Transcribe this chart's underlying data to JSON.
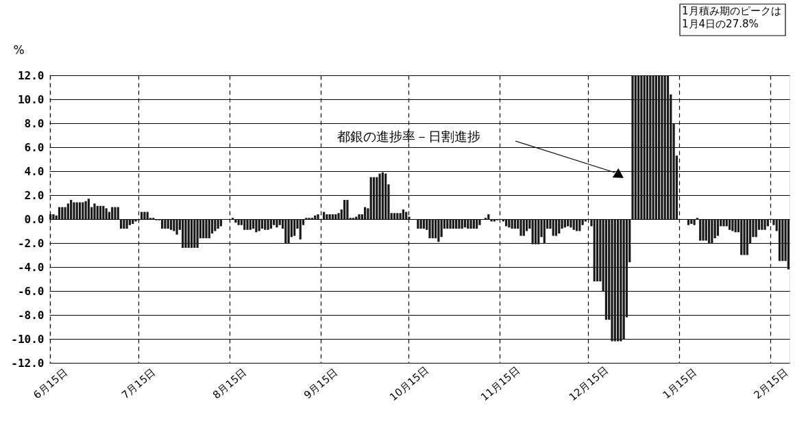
{
  "chart_data": {
    "type": "bar",
    "ylabel": "%",
    "categories": [
      "6月15日",
      null,
      null,
      null,
      null,
      null,
      null,
      null,
      null,
      null,
      null,
      null,
      null,
      null,
      null,
      null,
      null,
      null,
      null,
      null,
      null,
      null,
      null,
      null,
      null,
      null,
      null,
      null,
      null,
      null,
      "7月15日",
      null,
      null,
      null,
      null,
      null,
      null,
      null,
      null,
      null,
      null,
      null,
      null,
      null,
      null,
      null,
      null,
      null,
      null,
      null,
      null,
      null,
      null,
      null,
      null,
      null,
      null,
      null,
      null,
      null,
      null,
      "8月15日",
      null,
      null,
      null,
      null,
      null,
      null,
      null,
      null,
      null,
      null,
      null,
      null,
      null,
      null,
      null,
      null,
      null,
      null,
      null,
      null,
      null,
      null,
      null,
      null,
      null,
      null,
      null,
      null,
      null,
      null,
      "9月15日",
      null,
      null,
      null,
      null,
      null,
      null,
      null,
      null,
      null,
      null,
      null,
      null,
      null,
      null,
      null,
      null,
      null,
      null,
      null,
      null,
      null,
      null,
      null,
      null,
      null,
      null,
      null,
      null,
      null,
      "10月15日",
      null,
      null,
      null,
      null,
      null,
      null,
      null,
      null,
      null,
      null,
      null,
      null,
      null,
      null,
      null,
      null,
      null,
      null,
      null,
      null,
      null,
      null,
      null,
      null,
      null,
      null,
      null,
      null,
      null,
      null,
      "11月15日",
      null,
      null,
      null,
      null,
      null,
      null,
      null,
      null,
      null,
      null,
      null,
      null,
      null,
      null,
      null,
      null,
      null,
      null,
      null,
      null,
      null,
      null,
      null,
      null,
      null,
      null,
      null,
      null,
      null,
      "12月15日",
      null,
      null,
      null,
      null,
      null,
      null,
      null,
      null,
      null,
      null,
      null,
      null,
      null,
      null,
      null,
      null,
      null,
      null,
      null,
      null,
      null,
      null,
      null,
      null,
      null,
      null,
      null,
      null,
      null,
      null,
      "1月15日",
      null,
      null,
      null,
      null,
      null,
      null,
      null,
      null,
      null,
      null,
      null,
      null,
      null,
      null,
      null,
      null,
      null,
      null,
      null,
      null,
      null,
      null,
      null,
      null,
      null,
      null,
      null,
      null,
      null,
      null,
      "2月15日",
      null,
      null,
      null,
      null,
      null,
      null
    ],
    "series": [
      {
        "name": "都銀の進捗率－日割進捗",
        "color": "#1a1a1a",
        "values": [
          0.4,
          0.4,
          0.3,
          1.0,
          1.0,
          1.0,
          1.3,
          1.6,
          1.4,
          1.4,
          1.4,
          1.4,
          1.5,
          1.7,
          1.0,
          1.3,
          1.1,
          1.1,
          1.1,
          0.9,
          0.6,
          1.0,
          1.0,
          1.0,
          -0.8,
          -0.8,
          -0.8,
          -0.5,
          -0.4,
          -0.2,
          -0.1,
          0.6,
          0.6,
          0.6,
          0.1,
          0.1,
          -0.1,
          -0.1,
          -0.8,
          -0.8,
          -0.8,
          -0.9,
          -1.0,
          -1.3,
          -0.9,
          -2.4,
          -2.4,
          -2.4,
          -2.4,
          -2.4,
          -2.4,
          -1.6,
          -1.6,
          -1.6,
          -1.6,
          -1.2,
          -1.0,
          -0.8,
          -0.6,
          0,
          0,
          0,
          0.1,
          -0.3,
          -0.5,
          -0.5,
          -0.9,
          -0.9,
          -0.9,
          -0.8,
          -1.1,
          -1.0,
          -0.8,
          -0.9,
          -0.9,
          -0.8,
          -0.5,
          -0.7,
          -0.5,
          -0.8,
          -2.0,
          -2.0,
          -1.5,
          -1.4,
          -0.8,
          -1.7,
          -0.5,
          0.1,
          0.1,
          0.1,
          0.3,
          0.4,
          0,
          0.6,
          0.4,
          0.4,
          0.4,
          0.4,
          0.5,
          0.8,
          1.6,
          1.6,
          0.1,
          0.1,
          0.2,
          0.4,
          0.4,
          1.0,
          0.9,
          3.5,
          3.5,
          3.5,
          3.8,
          3.9,
          3.8,
          2.9,
          0.5,
          0.5,
          0.5,
          0.5,
          0.8,
          0.6,
          0.2,
          0,
          0,
          -0.8,
          -0.8,
          -0.8,
          -0.9,
          -1.6,
          -1.6,
          -1.6,
          -1.9,
          -1.5,
          -0.8,
          -0.8,
          -0.8,
          -0.8,
          -0.8,
          -0.8,
          -0.8,
          -0.7,
          -0.8,
          -0.8,
          -0.8,
          -0.8,
          -0.5,
          0,
          0.1,
          0.4,
          -0.2,
          -0.2,
          -0.1,
          0,
          -0.2,
          -0.6,
          -0.7,
          -0.8,
          -0.8,
          -0.8,
          -1.4,
          -1.4,
          -1.0,
          -0.8,
          -2.1,
          -2.1,
          -2.1,
          -1.5,
          -2.0,
          -0.8,
          -0.8,
          -1.4,
          -1.4,
          -1.2,
          -0.8,
          -0.7,
          -0.6,
          -0.7,
          -0.9,
          -1.0,
          -1.0,
          -0.5,
          -0.2,
          0,
          -0.6,
          -5.2,
          -5.2,
          -5.2,
          -6.0,
          -8.4,
          -8.4,
          -10.2,
          -10.2,
          -10.2,
          -10.2,
          -10.0,
          -8.2,
          -3.6,
          12,
          12,
          12,
          12,
          12,
          12,
          12,
          12,
          12,
          12,
          12,
          12,
          12,
          10.4,
          8.0,
          5.3,
          0,
          0,
          0,
          -0.5,
          -0.4,
          -0.5,
          0.1,
          -1.8,
          -1.8,
          -1.8,
          -2.0,
          -2.0,
          -1.6,
          -1.4,
          -0.6,
          -0.6,
          -0.6,
          -0.9,
          -1.0,
          -1.1,
          -1.1,
          -3.0,
          -3.0,
          -3.0,
          -2.0,
          -1.5,
          -1.5,
          -0.9,
          -0.9,
          -0.9,
          -0.6,
          0,
          -0.5,
          -1.0,
          -3.5,
          -3.5,
          -3.5,
          -4.2
        ]
      }
    ],
    "ylim": [
      -12,
      12
    ],
    "yticks": [
      {
        "value": 12,
        "label": "12.0"
      },
      {
        "value": 10,
        "label": "10.0"
      },
      {
        "value": 8,
        "label": "8.0"
      },
      {
        "value": 6,
        "label": "6.0"
      },
      {
        "value": 4,
        "label": "4.0"
      },
      {
        "value": 2,
        "label": "2.0"
      },
      {
        "value": 0,
        "label": "0.0"
      },
      {
        "value": -2,
        "label": "-2.0"
      },
      {
        "value": -4,
        "label": "-4.0"
      },
      {
        "value": -6,
        "label": "-6.0"
      },
      {
        "value": -8,
        "label": "-8.0"
      },
      {
        "value": -10,
        "label": "-10.0"
      },
      {
        "value": -12,
        "label": "-12.0"
      }
    ],
    "grid": true,
    "annotations": [
      "1月積み期のピークは1月4日の27.8%"
    ]
  }
}
